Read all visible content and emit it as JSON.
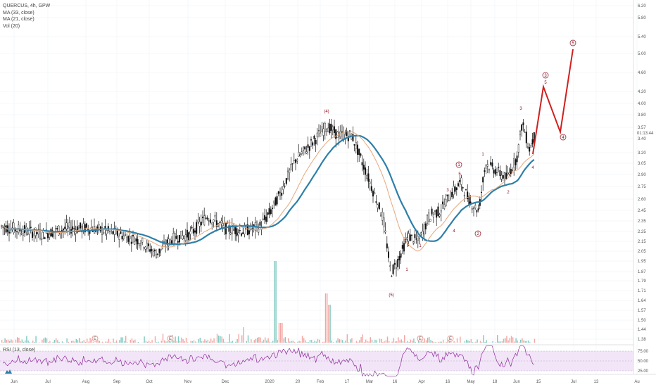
{
  "legend": {
    "line1": "QUERCUS, 4h, GPW",
    "line2": "MA (33, close)",
    "line3": "MA (21, close)",
    "line4": "Vol (20)",
    "rsi": "RSI (13, close)"
  },
  "colors": {
    "up": "#26a69a",
    "down": "#ef5350",
    "ma33": "#2e7fa8",
    "ma21": "#e8a77a",
    "projection": "#d0201e",
    "wave_label": "#8b0a1a",
    "rsi_line": "#8e2c9a",
    "rsi_band": "#e9d4f4"
  },
  "price_axis": {
    "ticks": [
      "6.20",
      "5.80",
      "5.40",
      "5.00",
      "4.60",
      "4.20",
      "4.00",
      "3.80",
      "3.57",
      "3.40",
      "3.20",
      "3.05",
      "2.90",
      "2.75",
      "2.60",
      "2.45",
      "2.35",
      "2.25",
      "2.15",
      "2.05",
      "1.95",
      "1.87",
      "1.79",
      "1.71",
      "1.64",
      "1.57",
      "1.50",
      "1.44",
      "1.38"
    ],
    "current_price": "3.57",
    "countdown": "01:13:44"
  },
  "rsi_axis": {
    "ticks": [
      "75.00",
      "50.00",
      "25.00"
    ]
  },
  "time_axis": {
    "ticks": [
      "Jun",
      "Jul",
      "Aug",
      "Sep",
      "Oct",
      "Nov",
      "Dec",
      "2020",
      "20",
      "Feb",
      "17",
      "Mar",
      "16",
      "Apr",
      "16",
      "May",
      "18",
      "Jun",
      "15",
      "Jul",
      "13",
      "Au"
    ]
  },
  "wave_labels": {
    "circled": [
      "1",
      "2",
      "3",
      "4",
      "5"
    ],
    "plain": [
      "(4)",
      "(5)",
      "1",
      "2",
      "3",
      "4",
      "5",
      "1",
      "2",
      "3",
      "4"
    ],
    "earnings": "E"
  },
  "chart_data": [
    {
      "type": "line",
      "title": "QUERCUS, 4h, GPW",
      "x": [
        "Jun 2019",
        "Jul",
        "Aug",
        "Sep",
        "Oct",
        "Nov",
        "Dec",
        "2020",
        "Jan 20",
        "Feb",
        "Feb 17",
        "Mar",
        "Mar 16",
        "Apr",
        "Apr 16",
        "May",
        "May 18",
        "Jun",
        "Jun 15",
        "Jul",
        "Jul 13"
      ],
      "series": [
        {
          "name": "QUERCUS, 4h, GPW",
          "values": [
            2.3,
            2.28,
            2.28,
            2.25,
            2.12,
            2.2,
            2.3,
            2.45,
            3.15,
            3.6,
            3.4,
            2.7,
            1.87,
            2.2,
            2.6,
            2.75,
            2.85,
            3.4,
            null,
            null,
            null
          ]
        },
        {
          "name": "MA (33, close)",
          "values": [
            2.28,
            2.25,
            2.27,
            2.26,
            2.1,
            2.22,
            2.28,
            2.38,
            3.05,
            3.45,
            3.4,
            3.0,
            2.05,
            2.05,
            2.4,
            2.65,
            2.8,
            3.1,
            null,
            null,
            null
          ]
        },
        {
          "name": "MA (21, close)",
          "values": [
            2.29,
            2.26,
            2.27,
            2.26,
            2.12,
            2.24,
            2.3,
            2.42,
            3.12,
            3.5,
            3.38,
            2.85,
            1.98,
            2.12,
            2.5,
            2.7,
            2.83,
            3.2,
            null,
            null,
            null
          ]
        }
      ],
      "projection": {
        "points": [
          {
            "x": "Jun 12",
            "y": 3.15
          },
          {
            "x": "Jun 15",
            "y": 4.3
          },
          {
            "x": "Jun 24",
            "y": 3.5
          },
          {
            "x": "Jul 2",
            "y": 5.1
          }
        ]
      },
      "ylim": [
        1.38,
        6.2
      ],
      "grid": true,
      "legend_position": "top-left"
    },
    {
      "type": "bar",
      "title": "Vol (20)",
      "note": "volume histogram along bottom of price pane"
    },
    {
      "type": "line",
      "title": "RSI (13, close)",
      "series": [
        {
          "name": "RSI (13, close)",
          "values": [
            52,
            48,
            50,
            47,
            45,
            50,
            52,
            55,
            60,
            68,
            55,
            35,
            25,
            45,
            55,
            60,
            58,
            75,
            60
          ]
        }
      ],
      "ylim": [
        0,
        100
      ],
      "bands": [
        25,
        50,
        75
      ]
    }
  ]
}
